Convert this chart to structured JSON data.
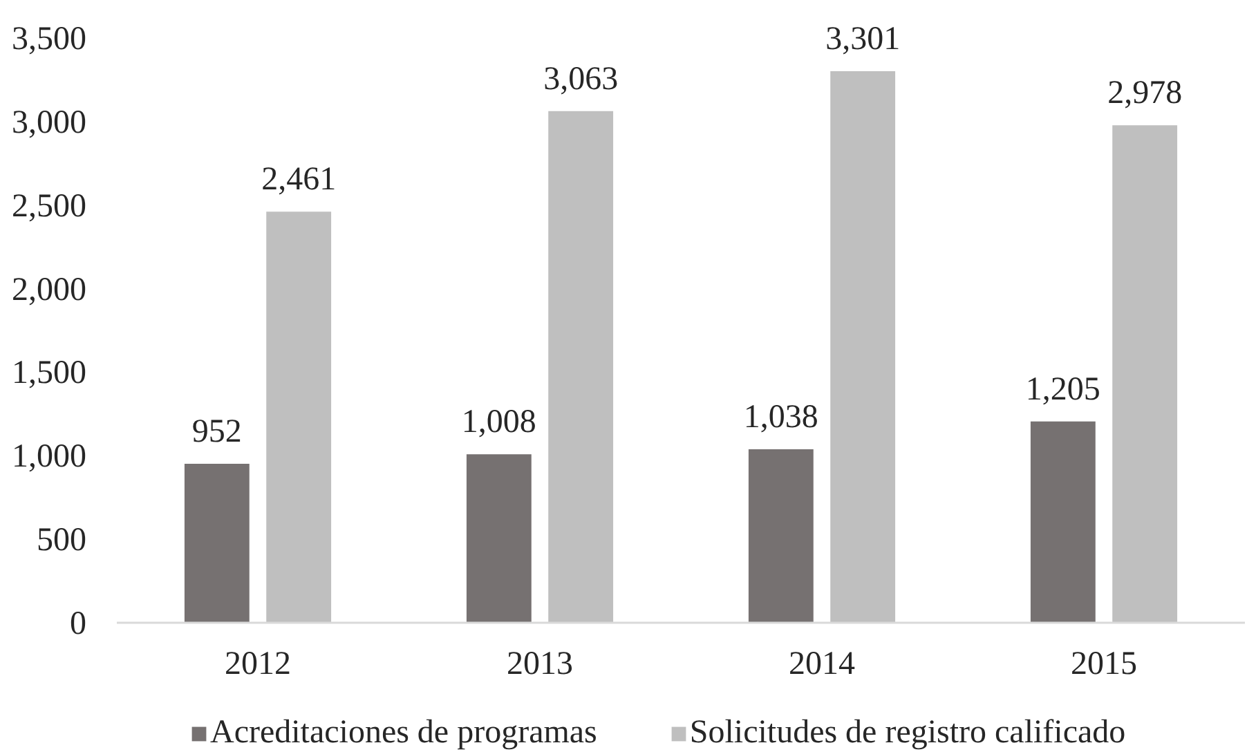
{
  "chart_data": {
    "type": "bar",
    "categories": [
      "2012",
      "2013",
      "2014",
      "2015"
    ],
    "series": [
      {
        "name": "Acreditaciones de programas",
        "color": "#767171",
        "values": [
          952,
          1008,
          1038,
          1205
        ],
        "value_labels": [
          "952",
          "1,008",
          "1,038",
          "1,205"
        ]
      },
      {
        "name": "Solicitudes de registro calificado",
        "color": "#bfbfbf",
        "values": [
          2461,
          3063,
          3301,
          2978
        ],
        "value_labels": [
          "2,461",
          "3,063",
          "3,301",
          "2,978"
        ]
      }
    ],
    "ylim": [
      0,
      3500
    ],
    "yticks": [
      0,
      500,
      {
        "value": 1000,
        "label": "1,000"
      },
      {
        "value": 1500,
        "label": "1,500"
      },
      {
        "value": 2000,
        "label": "2,000"
      },
      {
        "value": 2500,
        "label": "2,500"
      },
      {
        "value": 3000,
        "label": "3,000"
      },
      {
        "value": 3500,
        "label": "3,500"
      }
    ],
    "grid": false,
    "legend": "bottom"
  }
}
